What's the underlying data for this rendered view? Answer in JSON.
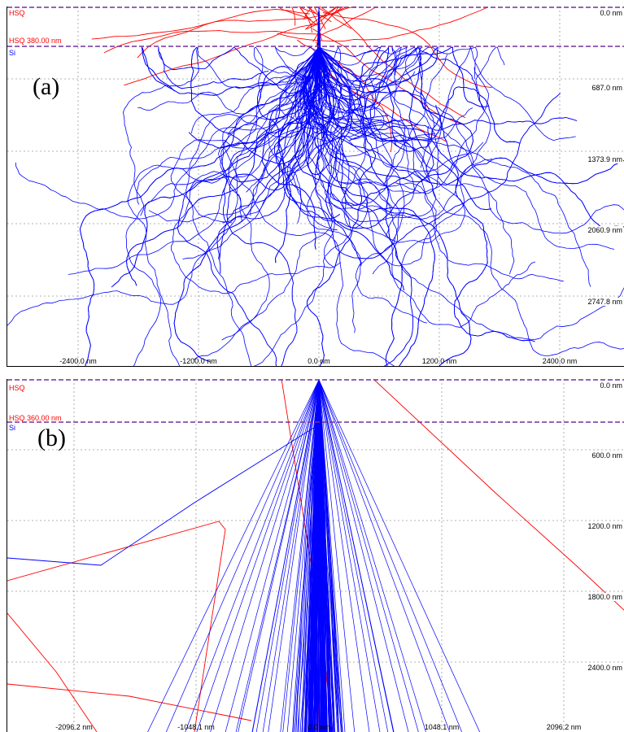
{
  "colors": {
    "electron_trajectory": "#0000ff",
    "secondary_trajectory": "#ff0000",
    "interface_line": "#7030a0",
    "grid": "#9a9a9a"
  },
  "panels": [
    {
      "letter": "(a)",
      "resist_label": "HSQ",
      "interface_label": "HSQ 380.00 nm",
      "substrate_label": "Si",
      "y_ticks": [
        "0.0 nm",
        "687.0 nm",
        "1373.9 nm",
        "2060.9 nm",
        "2747.8 nm"
      ],
      "x_ticks": [
        "-2400.0 nm",
        "-1200.0 nm",
        "0.0 nm",
        "1200.0 nm",
        "2400.0 nm"
      ]
    },
    {
      "letter": "(b)",
      "resist_label": "HSQ",
      "interface_label": "HSQ 360.00 nm",
      "substrate_label": "Si",
      "y_ticks": [
        "0.0 nm",
        "600.0 nm",
        "1200.0 nm",
        "1800.0 nm",
        "2400.0 nm"
      ],
      "x_ticks": [
        "-2096.2 nm",
        "-1048.1 nm",
        "0.0 nm",
        "1048.1 nm",
        "2096.2 nm"
      ]
    }
  ]
}
